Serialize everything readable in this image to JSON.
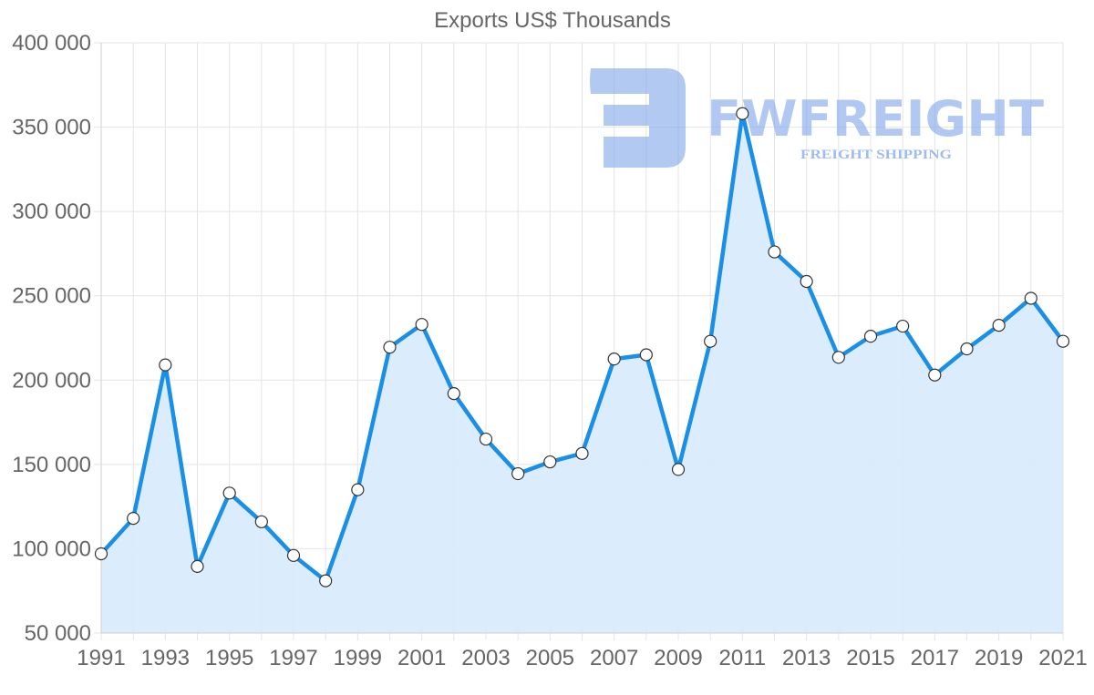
{
  "chart_data": {
    "type": "line",
    "title": "Exports US$ Thousands",
    "xlabel": "",
    "ylabel": "",
    "x": [
      1991,
      1992,
      1993,
      1994,
      1995,
      1996,
      1997,
      1998,
      1999,
      2000,
      2001,
      2002,
      2003,
      2004,
      2005,
      2006,
      2007,
      2008,
      2009,
      2010,
      2011,
      2012,
      2013,
      2014,
      2015,
      2016,
      2017,
      2018,
      2019,
      2020,
      2021
    ],
    "x_tick_labels": [
      "1991",
      "1993",
      "1995",
      "1997",
      "1999",
      "2001",
      "2003",
      "2005",
      "2007",
      "2009",
      "2011",
      "2013",
      "2015",
      "2017",
      "2019",
      "2021"
    ],
    "y_tick_labels": [
      "400 000",
      "350 000",
      "300 000",
      "250 000",
      "200 000",
      "150 000",
      "100 000",
      "50 000"
    ],
    "ylim": [
      50000,
      400000
    ],
    "grid": true,
    "legend": "none",
    "series": [
      {
        "name": "Exports US$ Thousands",
        "values": [
          97000,
          118000,
          209000,
          89500,
          133000,
          116000,
          96000,
          81000,
          135000,
          219500,
          233000,
          192000,
          165000,
          144500,
          151500,
          156500,
          212500,
          215000,
          147000,
          223000,
          358000,
          276000,
          258500,
          213500,
          226000,
          232000,
          203000,
          218500,
          232500,
          248500,
          223000
        ],
        "line_color": "#1a8fe8",
        "fill_color": "#d9ecfc"
      }
    ]
  },
  "watermark": {
    "brand": "FWFREIGHT",
    "tagline": "FREIGHT SHIPPING",
    "color": "#7ea6ea"
  }
}
